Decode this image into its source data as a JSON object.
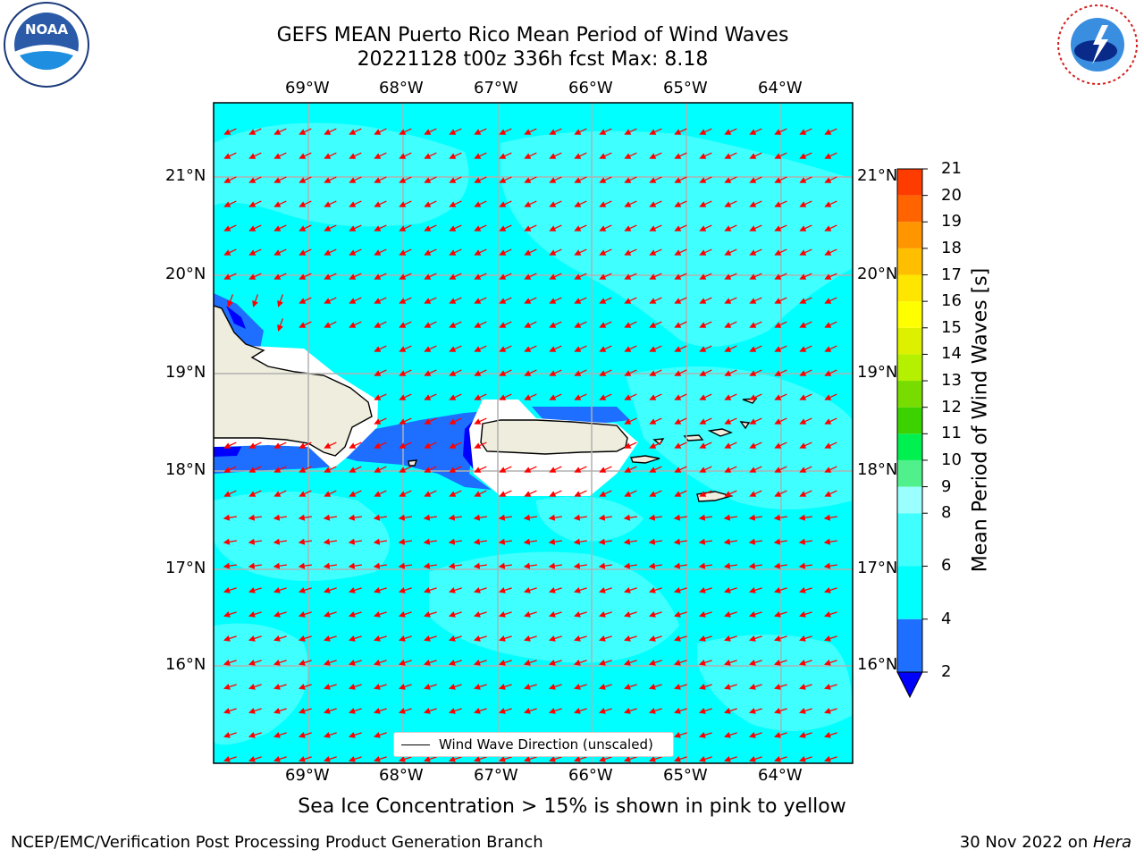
{
  "title": {
    "line1": "GEFS MEAN Puerto Rico Mean Period of Wind Waves",
    "line2": "20221128 t00z 336h fcst   Max: 8.18"
  },
  "axes": {
    "lon_labels": [
      "69°W",
      "68°W",
      "67°W",
      "66°W",
      "65°W",
      "64°W"
    ],
    "lat_labels": [
      "21°N",
      "20°N",
      "19°N",
      "18°N",
      "17°N",
      "16°N"
    ]
  },
  "colorbar": {
    "title": "Mean Period of Wind Waves [s]",
    "ticks": [
      "21",
      "20",
      "19",
      "18",
      "17",
      "16",
      "15",
      "14",
      "13",
      "12",
      "11",
      "10",
      "9",
      "8",
      "6",
      "4",
      "2"
    ],
    "tick_values": [
      21,
      20,
      19,
      18,
      17,
      16,
      15,
      14,
      13,
      12,
      11,
      10,
      9,
      8,
      6,
      4,
      2
    ],
    "colors_bottom_to_top": [
      "#1e6eff",
      "#00ffff",
      "#40ffff",
      "#9bffff",
      "#50f08c",
      "#00f050",
      "#3cd200",
      "#78dc00",
      "#b4f000",
      "#dcf000",
      "#ffff00",
      "#ffe600",
      "#ffbe00",
      "#ff9600",
      "#ff6400",
      "#ff3c00",
      "#ff0000"
    ],
    "under_color": "#0000ff"
  },
  "legend": {
    "label": "Wind Wave Direction (unscaled)"
  },
  "note": "Sea Ice Concentration > 15% is shown in pink to yellow",
  "footer": {
    "left": "NCEP/EMC/Verification Post Processing Product Generation Branch",
    "date": "30 Nov 2022 on ",
    "system": "Hera"
  },
  "logos": {
    "left": "NOAA",
    "right": "NATIONAL WEATHER SERVICE"
  },
  "colors": {
    "ocean_base": "#00ffff",
    "ocean_light": "#40ffff",
    "shallow_dark": "#1e6eff",
    "land": "#efeddd",
    "arrow": "#ff0000",
    "grid": "#b0b0b0"
  }
}
